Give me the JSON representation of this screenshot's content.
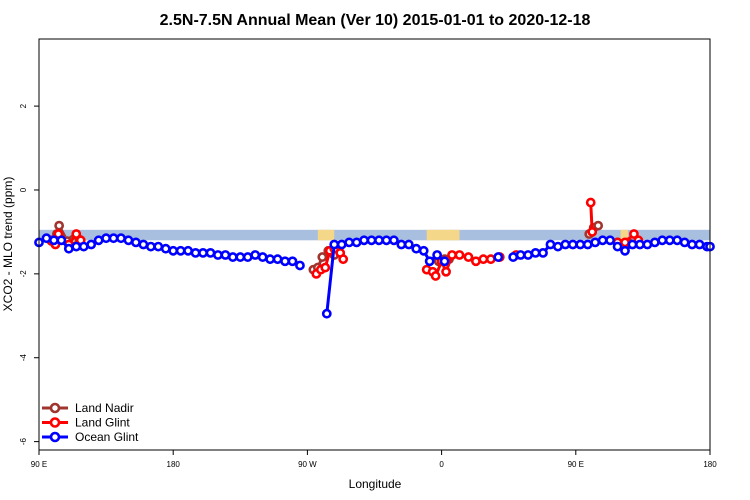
{
  "chart_data": {
    "type": "line",
    "title": "2.5N-7.5N Annual Mean (Ver 10)   2015-01-01 to 2020-12-18",
    "xlabel": "Longitude",
    "ylabel": "XCO2 - MLO trend (ppm)",
    "x_ticks": [
      {
        "value": 90,
        "label": "90 E"
      },
      {
        "value": 180,
        "label": "180"
      },
      {
        "value": 270,
        "label": "90 W"
      },
      {
        "value": 360,
        "label": "0"
      },
      {
        "value": 450,
        "label": "90 E"
      },
      {
        "value": 540,
        "label": "180"
      }
    ],
    "y_ticks": [
      {
        "value": 2,
        "label": "2"
      },
      {
        "value": 0,
        "label": "0"
      },
      {
        "value": -2,
        "label": "-2"
      },
      {
        "value": -4,
        "label": "-4"
      },
      {
        "value": -6,
        "label": "-6"
      }
    ],
    "xlim": [
      90,
      540
    ],
    "ylim": [
      -6.2,
      3.6
    ],
    "background_band": {
      "y_range": [
        -1.2,
        -0.95
      ],
      "ocean_color": "#a8bfdf",
      "land_color": "#f5d78a",
      "land_segments": [
        [
          277,
          288
        ],
        [
          350,
          372
        ],
        [
          480,
          485
        ]
      ]
    },
    "legend": {
      "position": "bottom-left"
    },
    "series": [
      {
        "name": "Land Nadir",
        "color": "#a0342e",
        "points": [
          [
            98.5,
            -1.22
          ],
          [
            102,
            -1.05
          ],
          [
            103.5,
            -0.85
          ],
          [
            109,
            -1.22
          ],
          [
            113,
            -1.18
          ],
          [
            117,
            -1.18
          ],
          [
            274,
            -1.9
          ],
          [
            277,
            -1.85
          ],
          [
            280,
            -1.6
          ],
          [
            284,
            -1.45
          ],
          [
            288,
            -1.55
          ],
          [
            358,
            -1.7
          ],
          [
            362,
            -1.65
          ],
          [
            365,
            -1.65
          ],
          [
            459,
            -1.05
          ],
          [
            462,
            -0.9
          ],
          [
            465,
            -0.85
          ],
          [
            478,
            -1.25
          ],
          [
            482,
            -1.35
          ],
          [
            485,
            -1.25
          ]
        ]
      },
      {
        "name": "Land Glint",
        "color": "#ff0000",
        "points": [
          [
            98,
            -1.2
          ],
          [
            101,
            -1.3
          ],
          [
            103,
            -1.05
          ],
          [
            110,
            -1.3
          ],
          [
            115,
            -1.05
          ],
          [
            118,
            -1.2
          ],
          [
            276,
            -2.0
          ],
          [
            279,
            -1.9
          ],
          [
            282,
            -1.85
          ],
          [
            285,
            -1.45
          ],
          [
            288,
            -1.4
          ],
          [
            292,
            -1.5
          ],
          [
            294,
            -1.65
          ],
          [
            350,
            -1.9
          ],
          [
            354,
            -1.95
          ],
          [
            356,
            -2.05
          ],
          [
            360,
            -1.7
          ],
          [
            363,
            -1.95
          ],
          [
            367,
            -1.55
          ],
          [
            372,
            -1.55
          ],
          [
            378,
            -1.6
          ],
          [
            383,
            -1.7
          ],
          [
            388,
            -1.65
          ],
          [
            393,
            -1.65
          ],
          [
            399,
            -1.6
          ],
          [
            410,
            -1.55
          ],
          [
            460,
            -0.3
          ],
          [
            461,
            -1.0
          ],
          [
            478,
            -1.25
          ],
          [
            483,
            -1.25
          ],
          [
            489,
            -1.05
          ],
          [
            492,
            -1.2
          ]
        ]
      },
      {
        "name": "Ocean Glint",
        "color": "#0000ff",
        "points": [
          [
            90,
            -1.25
          ],
          [
            95,
            -1.15
          ],
          [
            100,
            -1.2
          ],
          [
            105,
            -1.2
          ],
          [
            110,
            -1.4
          ],
          [
            115,
            -1.35
          ],
          [
            120,
            -1.35
          ],
          [
            125,
            -1.3
          ],
          [
            130,
            -1.2
          ],
          [
            135,
            -1.15
          ],
          [
            140,
            -1.15
          ],
          [
            145,
            -1.15
          ],
          [
            150,
            -1.2
          ],
          [
            155,
            -1.25
          ],
          [
            160,
            -1.3
          ],
          [
            165,
            -1.35
          ],
          [
            170,
            -1.35
          ],
          [
            175,
            -1.4
          ],
          [
            180,
            -1.45
          ],
          [
            185,
            -1.45
          ],
          [
            190,
            -1.45
          ],
          [
            195,
            -1.5
          ],
          [
            200,
            -1.5
          ],
          [
            205,
            -1.5
          ],
          [
            210,
            -1.55
          ],
          [
            215,
            -1.55
          ],
          [
            220,
            -1.6
          ],
          [
            225,
            -1.6
          ],
          [
            230,
            -1.6
          ],
          [
            235,
            -1.55
          ],
          [
            240,
            -1.6
          ],
          [
            245,
            -1.65
          ],
          [
            250,
            -1.65
          ],
          [
            255,
            -1.7
          ],
          [
            260,
            -1.7
          ],
          [
            265,
            -1.8
          ],
          [
            283,
            -2.95
          ],
          [
            288,
            -1.3
          ],
          [
            293,
            -1.3
          ],
          [
            298,
            -1.25
          ],
          [
            303,
            -1.25
          ],
          [
            308,
            -1.2
          ],
          [
            313,
            -1.2
          ],
          [
            318,
            -1.2
          ],
          [
            323,
            -1.2
          ],
          [
            328,
            -1.2
          ],
          [
            333,
            -1.3
          ],
          [
            338,
            -1.3
          ],
          [
            343,
            -1.4
          ],
          [
            348,
            -1.45
          ],
          [
            352,
            -1.7
          ],
          [
            357,
            -1.55
          ],
          [
            362,
            -1.7
          ],
          [
            398,
            -1.6
          ],
          [
            408,
            -1.6
          ],
          [
            413,
            -1.55
          ],
          [
            418,
            -1.55
          ],
          [
            423,
            -1.5
          ],
          [
            428,
            -1.5
          ],
          [
            433,
            -1.3
          ],
          [
            438,
            -1.35
          ],
          [
            443,
            -1.3
          ],
          [
            448,
            -1.3
          ],
          [
            453,
            -1.3
          ],
          [
            458,
            -1.3
          ],
          [
            463,
            -1.25
          ],
          [
            468,
            -1.2
          ],
          [
            473,
            -1.2
          ],
          [
            478,
            -1.35
          ],
          [
            483,
            -1.45
          ],
          [
            488,
            -1.3
          ],
          [
            493,
            -1.3
          ],
          [
            498,
            -1.3
          ],
          [
            503,
            -1.25
          ],
          [
            508,
            -1.2
          ],
          [
            513,
            -1.2
          ],
          [
            518,
            -1.2
          ],
          [
            523,
            -1.25
          ],
          [
            528,
            -1.3
          ],
          [
            533,
            -1.3
          ],
          [
            538,
            -1.35
          ],
          [
            540,
            -1.35
          ]
        ]
      }
    ]
  }
}
